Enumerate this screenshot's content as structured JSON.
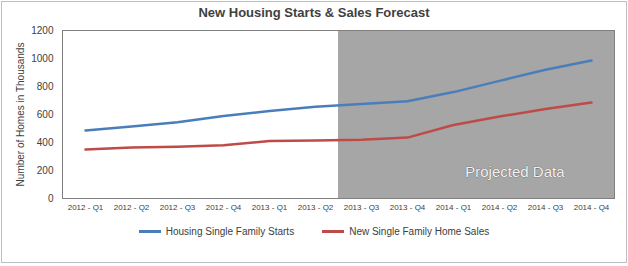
{
  "chart_data": {
    "type": "line",
    "title": "New Housing Starts & Sales Forecast",
    "y_label": "Number of Homes in Thousands",
    "categories": [
      "2012 - Q1",
      "2012 - Q2",
      "2012 - Q3",
      "2012 - Q4",
      "2013 - Q1",
      "2013 - Q2",
      "2013 - Q3",
      "2013 - Q4",
      "2014 - Q1",
      "2014 - Q2",
      "2014 - Q3",
      "2014 - Q4"
    ],
    "series": [
      {
        "name": "Housing  Single Family Starts",
        "color": "#4a7ebb",
        "values": [
          485,
          515,
          545,
          590,
          625,
          655,
          675,
          695,
          760,
          840,
          920,
          985
        ]
      },
      {
        "name": "New Single Family Home Sales",
        "color": "#be4b48",
        "values": [
          350,
          365,
          370,
          380,
          410,
          415,
          420,
          435,
          525,
          585,
          640,
          685
        ]
      }
    ],
    "ylim": [
      0,
      1200
    ],
    "yticks": [
      0,
      200,
      400,
      600,
      800,
      1000,
      1200
    ],
    "grid": false,
    "legend": "bottom",
    "annotations": [
      {
        "text": "Projected Data",
        "x_start": "2013 - Q3",
        "x_end": "2014 - Q4"
      }
    ]
  }
}
